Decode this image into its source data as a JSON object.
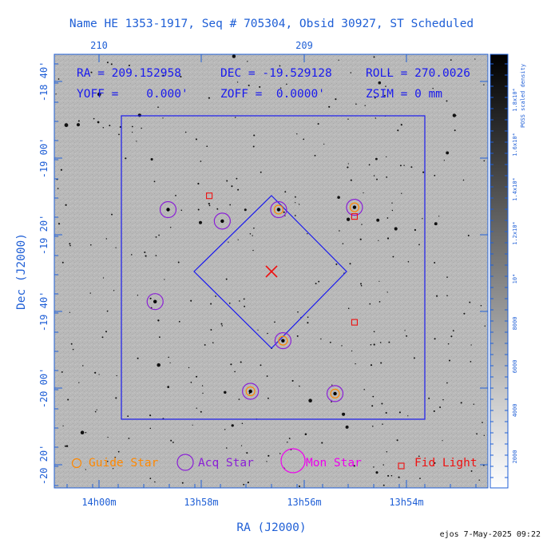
{
  "title": "Name HE 1353-1917, Seq # 705304, Obsid 30927, ST Scheduled",
  "info": {
    "ra": "RA = 209.152958",
    "dec": "DEC = -19.529128",
    "roll": "ROLL = 270.0026",
    "yoff": "YOFF =    0.000'",
    "zoff": "ZOFF =  0.0000'",
    "zsim": "ZSIM = 0 mm"
  },
  "legend": {
    "guide": "Guide Star",
    "acq": "Acq Star",
    "mon": "Mon Star",
    "fid": "Fid Light"
  },
  "colorbar": {
    "label": "POSS scaled density",
    "ticks": [
      "2000",
      "4000",
      "6000",
      "8000",
      "10⁴",
      "1.2x10⁴",
      "1.4x10⁴",
      "1.6x10⁴",
      "1.8x10⁴"
    ]
  },
  "footer": "ejos  7-May-2025 09:22",
  "colors": {
    "text": "#1f5fd6",
    "box": "#1a1aee",
    "guide": "#ff8800",
    "acq": "#8a1fd6",
    "mon": "#ee00ee",
    "fid": "#ee1111",
    "target": "#ee1111"
  },
  "chart_data": {
    "type": "scatter",
    "xlabel": "RA (J2000)",
    "ylabel": "Dec (J2000)",
    "x_ticks_bottom": [
      "14h00m",
      "13h58m",
      "13h56m",
      "13h54m"
    ],
    "x_ticks_top": [
      "210",
      "209"
    ],
    "y_ticks": [
      "-18 40'",
      "-19 00'",
      "-19 20'",
      "-19 40'",
      "-20 00'",
      "-20 20'"
    ],
    "target": {
      "ra": 209.152958,
      "dec": -19.529128
    },
    "acq_stars": [
      {
        "ra": 209.63,
        "dec": -19.26
      },
      {
        "ra": 209.38,
        "dec": -19.31
      },
      {
        "ra": 209.69,
        "dec": -19.66
      },
      {
        "ra": 209.12,
        "dec": -19.26
      },
      {
        "ra": 208.77,
        "dec": -19.25
      },
      {
        "ra": 209.1,
        "dec": -19.83
      },
      {
        "ra": 209.25,
        "dec": -20.05
      },
      {
        "ra": 208.86,
        "dec": -20.06
      }
    ],
    "guide_stars": [
      {
        "ra": 209.12,
        "dec": -19.26
      },
      {
        "ra": 208.77,
        "dec": -19.25
      },
      {
        "ra": 209.1,
        "dec": -19.83
      },
      {
        "ra": 209.25,
        "dec": -20.05
      },
      {
        "ra": 208.86,
        "dec": -20.06
      }
    ],
    "fid_lights": [
      {
        "ra": 209.44,
        "dec": -19.2
      },
      {
        "ra": 208.77,
        "dec": -19.29
      },
      {
        "ra": 208.77,
        "dec": -19.75
      }
    ]
  }
}
